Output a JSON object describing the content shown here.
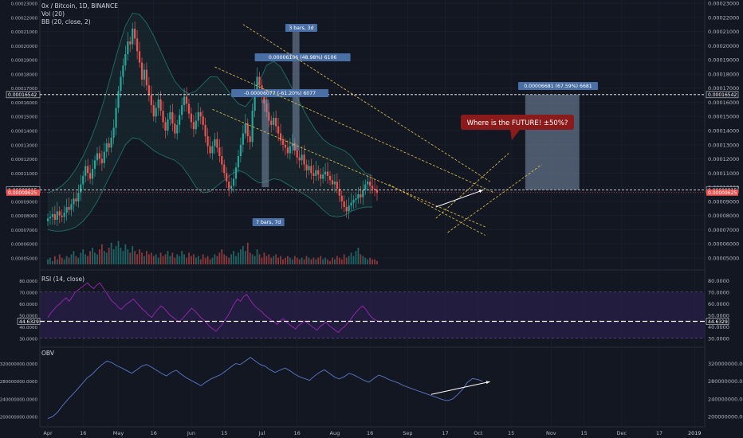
{
  "header": {
    "symbol": "0x / Bitcoin, 1D, BINANCE",
    "vol": "Vol (20)",
    "bb": "BB (20, close, 2)",
    "rsi": "RSI (14, close)",
    "obv": "OBV"
  },
  "colors": {
    "background": "#131722",
    "grid": "#1e2230",
    "up": "#26a69a",
    "down": "#ef5350",
    "bb": "#1f6f66",
    "rsi_line": "#9c27b0",
    "rsi_band": "#2a1f4a",
    "obv_line": "#5b78c7",
    "box": "#7c8ea8",
    "label": "#4a6fa5",
    "callout": "#8b1a1a"
  },
  "price_axis": {
    "ticks": [
      "0.00023000",
      "0.00022000",
      "0.00021000",
      "0.00020000",
      "0.00019000",
      "0.00018000",
      "0.00017000",
      "0.00016000",
      "0.00015000",
      "0.00014000",
      "0.00013000",
      "0.00012000",
      "0.00011000",
      "0.00010000",
      "0.00009000",
      "0.00008000",
      "0.00007000",
      "0.00006000",
      "0.00005000"
    ],
    "tick_values": [
      23,
      22,
      21,
      20,
      19,
      18,
      17,
      16,
      15,
      14,
      13,
      12,
      11,
      10,
      9,
      8,
      7,
      6,
      5
    ],
    "left_ticks": [
      "0.00023000",
      "0.00022000",
      "0.00021000",
      "0.00020000",
      "0.00019000",
      "0.00018000",
      "0.00017000",
      "0.00016000",
      "0.00015000",
      "0.00014000",
      "0.00013000",
      "0.00012000",
      "0.00011000",
      "0.00010000",
      "0.00009000",
      "0.00008000",
      "0.00007000",
      "0.00006000",
      "0.00005000"
    ],
    "level_top": "0.00016542",
    "level_top_value": 16.542,
    "level_mid": "0.00009815",
    "level_mid_value": 9.815,
    "level_cur": "0.00009625",
    "level_cur_value": 9.625
  },
  "rsi_axis": {
    "ticks": [
      "80.0000",
      "70.0000",
      "60.0000",
      "50.0000",
      "40.0000",
      "30.0000"
    ],
    "tick_values": [
      80,
      70,
      60,
      50,
      40,
      30
    ],
    "current": "44.6329",
    "current_value": 44.6329,
    "band": [
      30,
      70
    ]
  },
  "obv_axis": {
    "ticks": [
      "320000000.0000",
      "280000000.0000",
      "240000000.0000",
      "200000000.0000"
    ],
    "tick_values": [
      320,
      280,
      240,
      200
    ]
  },
  "time_axis": {
    "labels": [
      "Apr",
      "16",
      "May",
      "16",
      "Jun",
      "15",
      "Jul",
      "16",
      "Aug",
      "16",
      "Sep",
      "17",
      "Oct",
      "15",
      "Nov",
      "15",
      "Dec",
      "17",
      "2019"
    ],
    "days": [
      0,
      15,
      30,
      45,
      61,
      75,
      91,
      106,
      122,
      137,
      153,
      169,
      183,
      197,
      214,
      228,
      244,
      260,
      275
    ]
  },
  "annotations": {
    "bars_top": "3 bars, 3d",
    "measure_1": "0.00006106 (48.98%) 6106",
    "measure_2": "-0.00006077 (-61.20%) 6077",
    "bars_bottom": "7 bars, 7d",
    "target": "0.00006681 (67.59%) 6681",
    "callout": "Where is the FUTURE! ±50%?"
  },
  "chart_data": {
    "type": "candlestick",
    "x_unit": "days since Apr 1",
    "price_scale": "1e-5 BTC",
    "closes": [
      7.8,
      7.9,
      8.1,
      7.7,
      8.3,
      8.0,
      7.9,
      8.2,
      8.6,
      8.4,
      8.8,
      9.2,
      9.0,
      9.6,
      10.2,
      10.8,
      11.5,
      11.0,
      10.6,
      11.3,
      11.9,
      12.4,
      12.0,
      11.7,
      12.5,
      13.1,
      12.8,
      13.5,
      14.2,
      15.6,
      16.8,
      17.8,
      18.6,
      19.4,
      20.3,
      20.1,
      21.2,
      20.5,
      19.6,
      18.8,
      17.6,
      18.3,
      17.2,
      16.5,
      15.8,
      15.0,
      15.6,
      16.2,
      15.4,
      14.6,
      14.0,
      14.8,
      15.3,
      14.5,
      13.8,
      14.4,
      15.1,
      15.8,
      16.4,
      15.9,
      15.2,
      14.6,
      14.1,
      14.7,
      15.3,
      15.0,
      14.4,
      13.6,
      12.9,
      12.4,
      12.9,
      13.4,
      12.8,
      12.2,
      11.6,
      11.0,
      10.4,
      9.9,
      10.1,
      10.6,
      11.4,
      12.2,
      13.0,
      13.8,
      14.5,
      13.6,
      13.2,
      15.4,
      16.9,
      17.8,
      17.2,
      16.4,
      15.9,
      15.3,
      14.7,
      14.4,
      14.9,
      14.3,
      13.8,
      13.3,
      13.0,
      12.8,
      12.4,
      12.9,
      13.1,
      12.6,
      12.1,
      11.9,
      12.3,
      11.6,
      11.2,
      11.5,
      11.0,
      10.8,
      11.2,
      10.9,
      10.6,
      10.9,
      11.1,
      10.8,
      10.5,
      10.2,
      10.4,
      9.9,
      9.4,
      9.0,
      8.6,
      8.3,
      8.7,
      8.9,
      9.1,
      9.2,
      9.5,
      9.3,
      9.8,
      10.2,
      10.4,
      10.1,
      9.9,
      9.8,
      9.6
    ],
    "bb_upper": [
      9.6,
      9.8,
      10.1,
      10.6,
      11.3,
      12.2,
      13.3,
      14.6,
      16.2,
      18.0,
      19.8,
      21.4,
      22.3,
      22.2,
      21.6,
      20.7,
      19.6,
      18.5,
      17.5,
      16.9,
      16.6,
      16.8,
      17.3,
      17.8,
      17.8,
      17.2,
      16.5,
      15.9,
      15.7,
      16.3,
      17.5,
      18.6,
      18.9,
      18.5,
      17.6,
      16.6,
      15.7,
      14.8,
      14.0,
      13.4,
      13.0,
      12.8,
      12.6,
      12.2,
      11.5,
      11.0,
      10.8
    ],
    "bb_lower": [
      7.0,
      6.9,
      6.9,
      7.0,
      7.2,
      7.6,
      8.2,
      9.0,
      10.0,
      11.0,
      12.0,
      13.0,
      13.5,
      13.4,
      13.0,
      12.6,
      12.3,
      12.1,
      11.9,
      11.5,
      10.8,
      10.0,
      9.6,
      9.7,
      10.1,
      10.5,
      10.9,
      11.2,
      11.0,
      10.6,
      10.3,
      10.4,
      10.6,
      10.5,
      10.2,
      9.9,
      9.6,
      9.3,
      8.9,
      8.4,
      8.0,
      7.9,
      8.0,
      8.3,
      8.5,
      8.6,
      8.6
    ],
    "volume": [
      3,
      4,
      2,
      5,
      3,
      6,
      4,
      3,
      5,
      4,
      6,
      8,
      5,
      4,
      7,
      9,
      6,
      5,
      8,
      10,
      7,
      6,
      9,
      12,
      8,
      7,
      10,
      13,
      9,
      11,
      14,
      10,
      8,
      12,
      9,
      7,
      11,
      8,
      6,
      9,
      7,
      5,
      8,
      6,
      7,
      5,
      6,
      4,
      7,
      5,
      6,
      8,
      5,
      7,
      4,
      6,
      5,
      8,
      6,
      4,
      7,
      5,
      6,
      4,
      5,
      3,
      6,
      4,
      5,
      3,
      4,
      6,
      5,
      7,
      9,
      6,
      5,
      4,
      6,
      8,
      5,
      7,
      9,
      11,
      8,
      13,
      7,
      6,
      5,
      9,
      6,
      4,
      7,
      5,
      6,
      4,
      5,
      6,
      4,
      5,
      3,
      4,
      5,
      4,
      3,
      5,
      4,
      3,
      4,
      3,
      5,
      4,
      3,
      4,
      3,
      4,
      5,
      3,
      4,
      3,
      2,
      4,
      3,
      5,
      4,
      3,
      6,
      4,
      5,
      7,
      5,
      8,
      10,
      6,
      5,
      4,
      3,
      4,
      3,
      3,
      2
    ],
    "rsi": [
      48,
      52,
      55,
      58,
      60,
      63,
      65,
      62,
      66,
      70,
      72,
      74,
      76,
      78,
      75,
      73,
      76,
      78,
      74,
      70,
      66,
      62,
      60,
      57,
      55,
      58,
      60,
      62,
      64,
      61,
      58,
      55,
      53,
      50,
      48,
      52,
      55,
      58,
      56,
      53,
      50,
      48,
      46,
      44,
      47,
      50,
      53,
      56,
      54,
      51,
      48,
      46,
      43,
      40,
      38,
      36,
      39,
      42,
      46,
      50,
      55,
      60,
      64,
      62,
      66,
      68,
      64,
      60,
      57,
      55,
      53,
      50,
      48,
      46,
      44,
      42,
      45,
      47,
      44,
      42,
      40,
      38,
      41,
      43,
      45,
      43,
      41,
      39,
      37,
      40,
      42,
      44,
      41,
      39,
      37,
      35,
      38,
      40,
      43,
      46,
      50,
      53,
      56,
      58,
      55,
      51,
      48,
      46,
      45,
      44
    ],
    "obv": [
      195,
      200,
      210,
      225,
      238,
      250,
      262,
      275,
      288,
      296,
      308,
      318,
      326,
      322,
      315,
      310,
      304,
      298,
      306,
      314,
      318,
      312,
      305,
      298,
      292,
      300,
      305,
      296,
      288,
      282,
      276,
      270,
      278,
      285,
      290,
      295,
      303,
      312,
      320,
      318,
      326,
      334,
      326,
      318,
      314,
      306,
      300,
      305,
      310,
      304,
      296,
      290,
      286,
      282,
      292,
      300,
      306,
      298,
      290,
      285,
      290,
      298,
      294,
      288,
      282,
      278,
      286,
      294,
      290,
      284,
      280,
      276,
      270,
      266,
      262,
      258,
      254,
      250,
      246,
      242,
      238,
      236,
      240,
      250,
      262,
      278,
      286,
      284,
      280
    ]
  }
}
